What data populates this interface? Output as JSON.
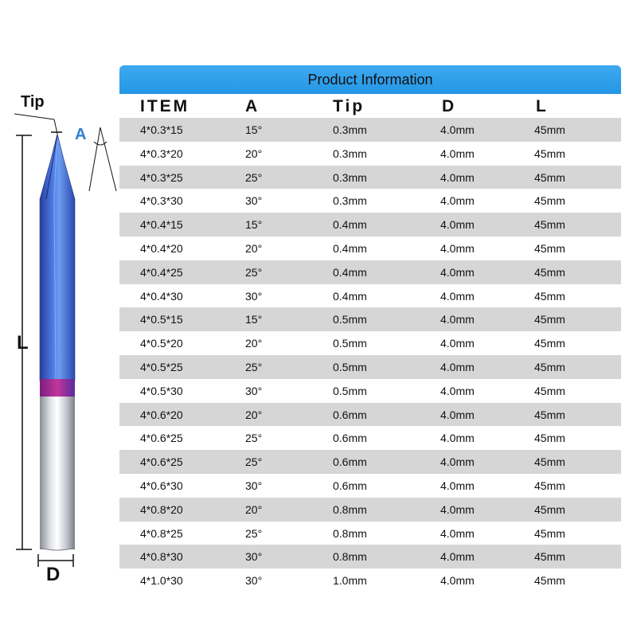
{
  "figure": {
    "tip_label": "Tip",
    "angle_label": "A",
    "length_label": "L",
    "diameter_label": "D"
  },
  "table": {
    "title": "Product Information",
    "columns": [
      "ITEM",
      "A",
      "Tip",
      "D",
      "L"
    ],
    "rows": [
      [
        "4*0.3*15",
        "15°",
        "0.3mm",
        "4.0mm",
        "45mm"
      ],
      [
        "4*0.3*20",
        "20°",
        "0.3mm",
        "4.0mm",
        "45mm"
      ],
      [
        "4*0.3*25",
        "25°",
        "0.3mm",
        "4.0mm",
        "45mm"
      ],
      [
        "4*0.3*30",
        "30°",
        "0.3mm",
        "4.0mm",
        "45mm"
      ],
      [
        "4*0.4*15",
        "15°",
        "0.4mm",
        "4.0mm",
        "45mm"
      ],
      [
        "4*0.4*20",
        "20°",
        "0.4mm",
        "4.0mm",
        "45mm"
      ],
      [
        "4*0.4*25",
        "25°",
        "0.4mm",
        "4.0mm",
        "45mm"
      ],
      [
        "4*0.4*30",
        "30°",
        "0.4mm",
        "4.0mm",
        "45mm"
      ],
      [
        "4*0.5*15",
        "15°",
        "0.5mm",
        "4.0mm",
        "45mm"
      ],
      [
        "4*0.5*20",
        "20°",
        "0.5mm",
        "4.0mm",
        "45mm"
      ],
      [
        "4*0.5*25",
        "25°",
        "0.5mm",
        "4.0mm",
        "45mm"
      ],
      [
        "4*0.5*30",
        "30°",
        "0.5mm",
        "4.0mm",
        "45mm"
      ],
      [
        "4*0.6*20",
        "20°",
        "0.6mm",
        "4.0mm",
        "45mm"
      ],
      [
        "4*0.6*25",
        "25°",
        "0.6mm",
        "4.0mm",
        "45mm"
      ],
      [
        "4*0.6*25",
        "25°",
        "0.6mm",
        "4.0mm",
        "45mm"
      ],
      [
        "4*0.6*30",
        "30°",
        "0.6mm",
        "4.0mm",
        "45mm"
      ],
      [
        "4*0.8*20",
        "20°",
        "0.8mm",
        "4.0mm",
        "45mm"
      ],
      [
        "4*0.8*25",
        "25°",
        "0.8mm",
        "4.0mm",
        "45mm"
      ],
      [
        "4*0.8*30",
        "30°",
        "0.8mm",
        "4.0mm",
        "45mm"
      ],
      [
        "4*1.0*30",
        "30°",
        "1.0mm",
        "4.0mm",
        "45mm"
      ]
    ]
  },
  "colors": {
    "header_bar": "#2496e4",
    "row_shade": "#d6d6d6",
    "coating_blue": "#3a5fd0",
    "angle_label": "#2f7fd4"
  }
}
